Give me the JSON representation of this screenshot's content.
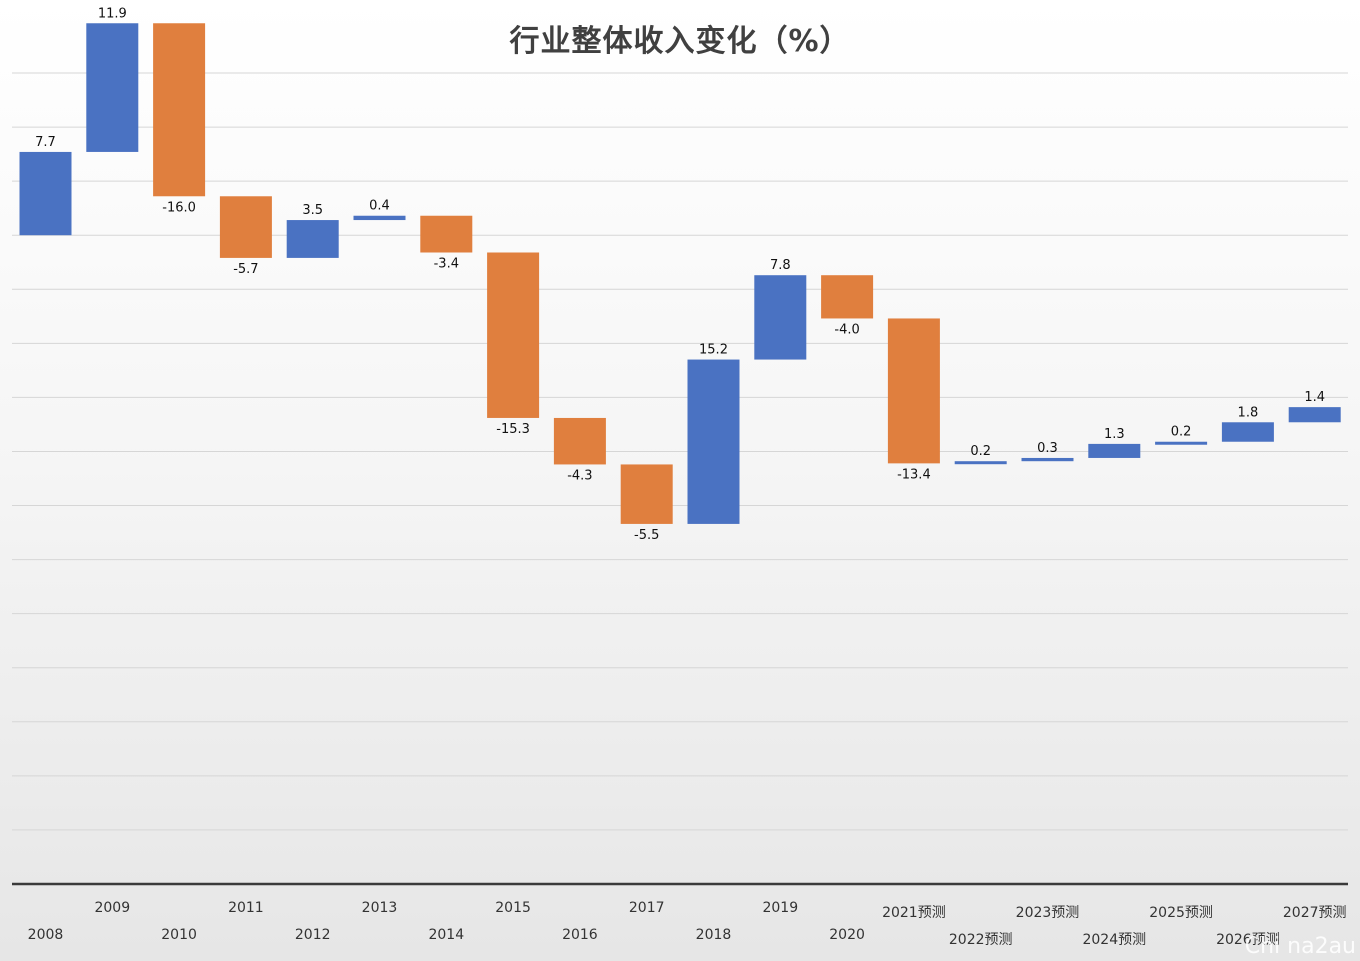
{
  "chart_data": {
    "type": "bar",
    "subtype": "waterfall",
    "title": "行业整体收入变化（%）",
    "xlabel": "",
    "ylabel": "",
    "grid": true,
    "ylim": [
      -60,
      15
    ],
    "categories": [
      "2008",
      "2009",
      "2010",
      "2011",
      "2012",
      "2013",
      "2014",
      "2015",
      "2016",
      "2017",
      "2018",
      "2019",
      "2020",
      "2021预测",
      "2022预测",
      "2023预测",
      "2024预测",
      "2025预测",
      "2026预测",
      "2027预测"
    ],
    "values": [
      7.7,
      11.9,
      -16.0,
      -5.7,
      3.5,
      0.4,
      -3.4,
      -15.3,
      -4.3,
      -5.5,
      15.2,
      7.8,
      -4.0,
      -13.4,
      0.2,
      0.3,
      1.3,
      0.2,
      1.8,
      1.4
    ],
    "data_labels": [
      "7.7",
      "11.9",
      "-16.0",
      "-5.7",
      "3.5",
      "0.4",
      "-3.4",
      "-15.3",
      "-4.3",
      "-5.5",
      "15.2",
      "7.8",
      "-4.0",
      "-13.4",
      "0.2",
      "0.3",
      "1.3",
      "0.2",
      "1.8",
      "1.4"
    ],
    "colors": {
      "increase": "#4A72C2",
      "decrease": "#E07F3E"
    }
  },
  "watermark": "Chi na2au"
}
